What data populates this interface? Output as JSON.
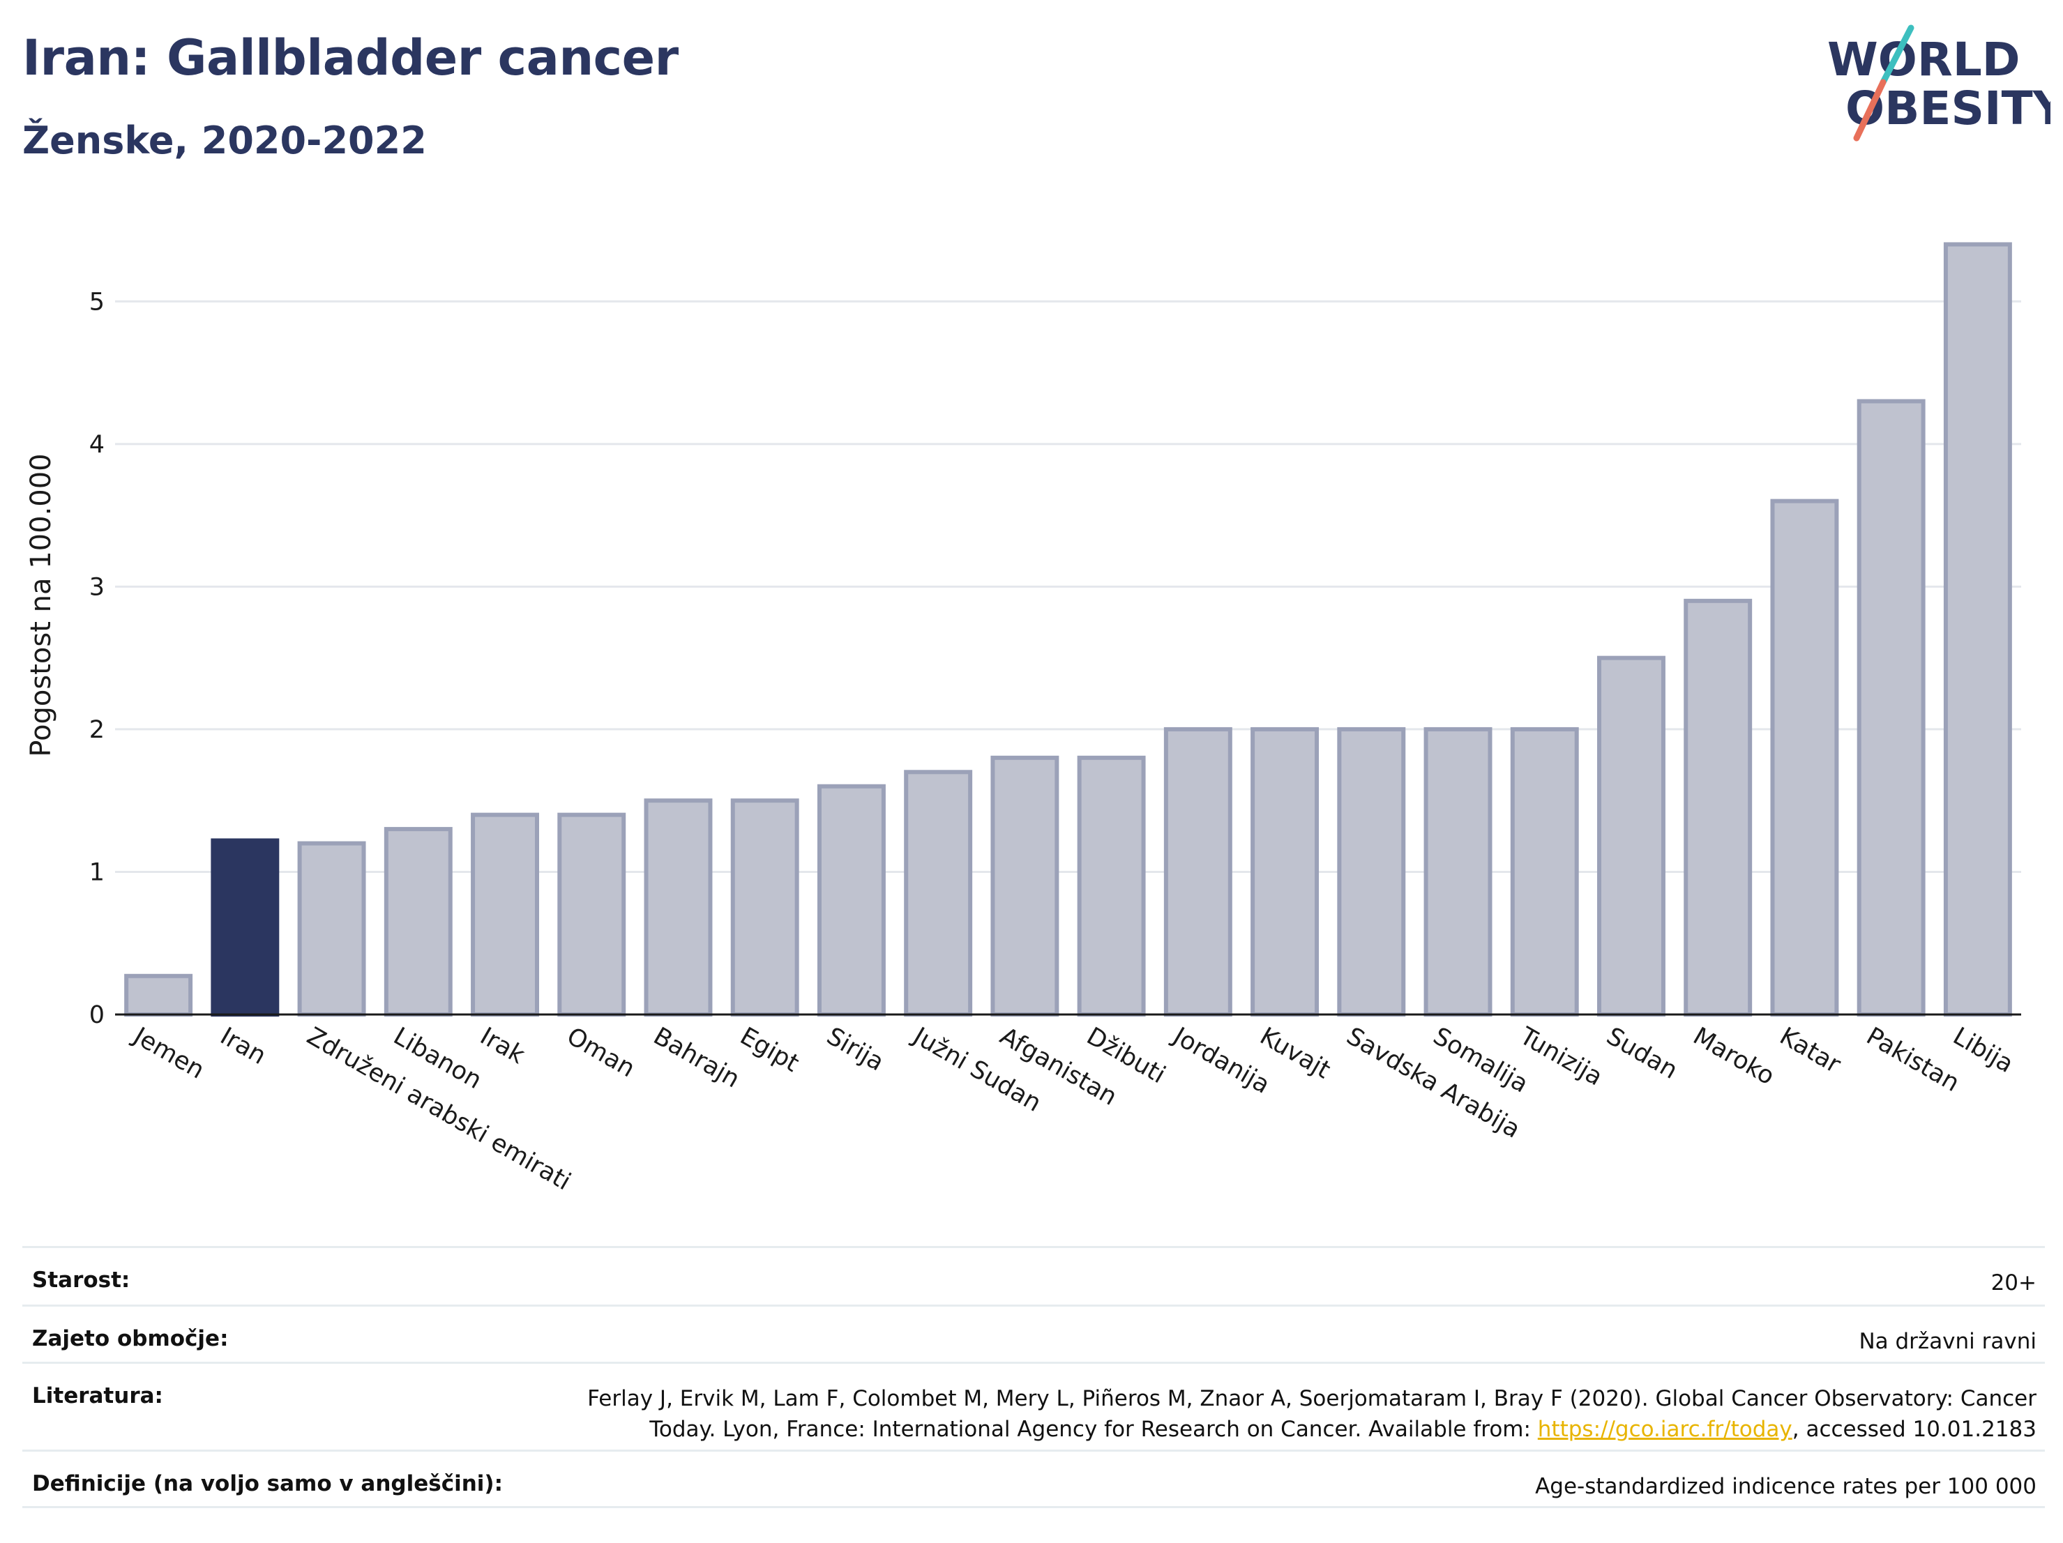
{
  "header": {
    "title": "Iran: Gallbladder cancer",
    "subtitle": "Ženske, 2020-2022"
  },
  "logo": {
    "line1": "WORLD",
    "line2": "OBESITY",
    "colors": {
      "text": "#2b3660",
      "teal": "#3dbfbf",
      "coral": "#e8705a"
    }
  },
  "colors": {
    "bar": "#bfc2cf",
    "bar_stroke": "#9ba1b8",
    "highlight": "#2b3660",
    "grid": "#e4e7ec",
    "axis": "#1a1a1a"
  },
  "chart_data": {
    "type": "bar",
    "categories": [
      "Jemen",
      "Iran",
      "Združeni arabski emirati",
      "Libanon",
      "Irak",
      "Oman",
      "Bahrajn",
      "Egipt",
      "Sirija",
      "Južni Sudan",
      "Afganistan",
      "Džibuti",
      "Jordanija",
      "Kuvajt",
      "Savdska Arabija",
      "Somalija",
      "Tunizija",
      "Sudan",
      "Maroko",
      "Katar",
      "Pakistan",
      "Libija"
    ],
    "values": [
      0.27,
      1.22,
      1.2,
      1.3,
      1.4,
      1.4,
      1.5,
      1.5,
      1.6,
      1.7,
      1.8,
      1.8,
      2.0,
      2.0,
      2.0,
      2.0,
      2.0,
      2.5,
      2.9,
      3.6,
      4.3,
      5.4
    ],
    "highlight": "Iran",
    "xlabel": "",
    "ylabel": "Pogostost na 100.000",
    "ylim": [
      0,
      5.5
    ],
    "yticks": [
      0,
      1,
      2,
      3,
      4,
      5
    ],
    "grid": true,
    "legend": "none"
  },
  "info": {
    "rows": [
      {
        "label": "Starost:",
        "value": "20+"
      },
      {
        "label": "Zajeto območje:",
        "value": "Na državni ravni"
      },
      {
        "label": "Literatura:",
        "value_line1": "Ferlay J, Ervik M, Lam F, Colombet M, Mery L, Piñeros M, Znaor A, Soerjomataram I, Bray F (2020). Global Cancer Observatory: Cancer",
        "value_line2_pre": "Today. Lyon, France: International Agency for Research on Cancer. Available from: ",
        "link_text": "https://gco.iarc.fr/today",
        "value_line2_post": ", accessed 10.01.2183"
      },
      {
        "label": "Definicije (na voljo samo v angleščini):",
        "value": "Age-standardized indicence rates per 100 000"
      }
    ]
  }
}
